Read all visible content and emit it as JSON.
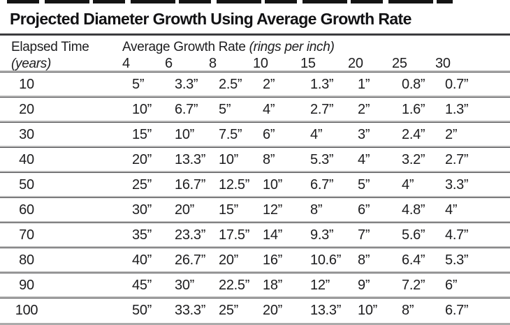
{
  "title": "Projected Diameter Growth Using Average Growth Rate",
  "header": {
    "row_label_line1": "Elapsed Time",
    "row_label_line2": "(years)",
    "col_group_label": "Average Growth Rate",
    "col_group_note": "(rings per inch)"
  },
  "chart_data": {
    "type": "table",
    "title": "Projected Diameter Growth Using Average Growth Rate",
    "row_header": "Elapsed Time (years)",
    "column_group_header": "Average Growth Rate (rings per inch)",
    "columns": [
      "4",
      "6",
      "8",
      "10",
      "15",
      "20",
      "25",
      "30"
    ],
    "rows": [
      {
        "elapsed_years": "10",
        "values": [
          "5”",
          "3.3”",
          "2.5”",
          "2”",
          "1.3”",
          "1”",
          "0.8”",
          "0.7”"
        ]
      },
      {
        "elapsed_years": "20",
        "values": [
          "10”",
          "6.7”",
          "5”",
          "4”",
          "2.7”",
          "2”",
          "1.6”",
          "1.3”"
        ]
      },
      {
        "elapsed_years": "30",
        "values": [
          "15”",
          "10”",
          "7.5”",
          "6”",
          "4”",
          "3”",
          "2.4”",
          "2”"
        ]
      },
      {
        "elapsed_years": "40",
        "values": [
          "20”",
          "13.3”",
          "10”",
          "8”",
          "5.3”",
          "4”",
          "3.2”",
          "2.7”"
        ]
      },
      {
        "elapsed_years": "50",
        "values": [
          "25”",
          "16.7”",
          "12.5”",
          "10”",
          "6.7”",
          "5”",
          "4”",
          "3.3”"
        ]
      },
      {
        "elapsed_years": "60",
        "values": [
          "30”",
          "20”",
          "15”",
          "12”",
          "8”",
          "6”",
          "4.8”",
          "4”"
        ]
      },
      {
        "elapsed_years": "70",
        "values": [
          "35”",
          "23.3”",
          "17.5”",
          "14”",
          "9.3”",
          "7”",
          "5.6”",
          "4.7”"
        ]
      },
      {
        "elapsed_years": "80",
        "values": [
          "40”",
          "26.7”",
          "20”",
          "16”",
          "10.6”",
          "8”",
          "6.4”",
          "5.3”"
        ]
      },
      {
        "elapsed_years": "90",
        "values": [
          "45”",
          "30”",
          "22.5”",
          "18”",
          "12”",
          "9”",
          "7.2”",
          "6”"
        ]
      },
      {
        "elapsed_years": "100",
        "values": [
          "50”",
          "33.3”",
          "25”",
          "20”",
          "13.3”",
          "10”",
          "8”",
          "6.7”"
        ]
      }
    ]
  },
  "colors": {
    "text": "#1d1d1f",
    "title_text": "#121214",
    "rule_dark": "#4e4e50",
    "rule_light": "#b9b9b9",
    "title_rule": "#3c3c3e",
    "bottom_strip": "#ababab",
    "crop_artifact": "#141414",
    "background": "#ffffff"
  }
}
